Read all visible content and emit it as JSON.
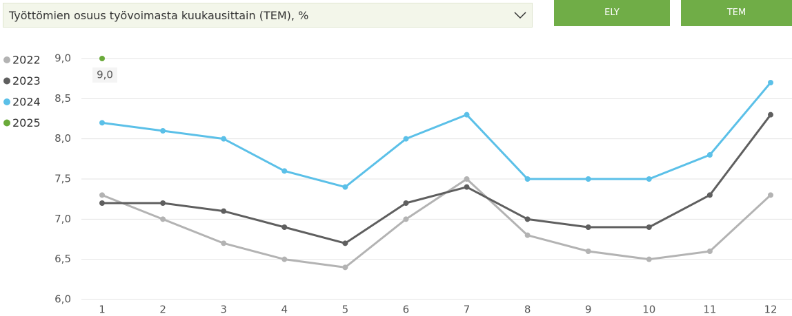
{
  "dropdown": {
    "label": "Työttömien osuus työvoimasta kuukausittain (TEM), %"
  },
  "buttons": [
    "ELY",
    "TEM"
  ],
  "chart_data": {
    "type": "line",
    "categories": [
      "1",
      "2",
      "3",
      "4",
      "5",
      "6",
      "7",
      "8",
      "9",
      "10",
      "11",
      "12"
    ],
    "series": [
      {
        "name": "2022",
        "color": "#b3b3b3",
        "values": [
          7.3,
          7.0,
          6.7,
          6.5,
          6.4,
          7.0,
          7.5,
          6.8,
          6.6,
          6.5,
          6.6,
          7.3
        ]
      },
      {
        "name": "2023",
        "color": "#5f5f5f",
        "values": [
          7.2,
          7.2,
          7.1,
          6.9,
          6.7,
          7.2,
          7.4,
          7.0,
          6.9,
          6.9,
          7.3,
          8.3
        ]
      },
      {
        "name": "2024",
        "color": "#5bc0e8",
        "values": [
          8.2,
          8.1,
          8.0,
          7.6,
          7.4,
          8.0,
          8.3,
          7.5,
          7.5,
          7.5,
          7.8,
          8.7
        ]
      },
      {
        "name": "2025",
        "color": "#6aaa3a",
        "values": [
          9.0,
          null,
          null,
          null,
          null,
          null,
          null,
          null,
          null,
          null,
          null,
          null
        ],
        "value_labels": [
          "9,0",
          null,
          null,
          null,
          null,
          null,
          null,
          null,
          null,
          null,
          null,
          null
        ]
      }
    ],
    "ylim": [
      6.0,
      9.0
    ],
    "yticks": [
      {
        "value": 6.0,
        "label": "6,0"
      },
      {
        "value": 6.5,
        "label": "6,5"
      },
      {
        "value": 7.0,
        "label": "7,0"
      },
      {
        "value": 7.5,
        "label": "7,5"
      },
      {
        "value": 8.0,
        "label": "8,0"
      },
      {
        "value": 8.5,
        "label": "8,5"
      },
      {
        "value": 9.0,
        "label": "9,0"
      }
    ],
    "grid": true,
    "legend": "left"
  }
}
